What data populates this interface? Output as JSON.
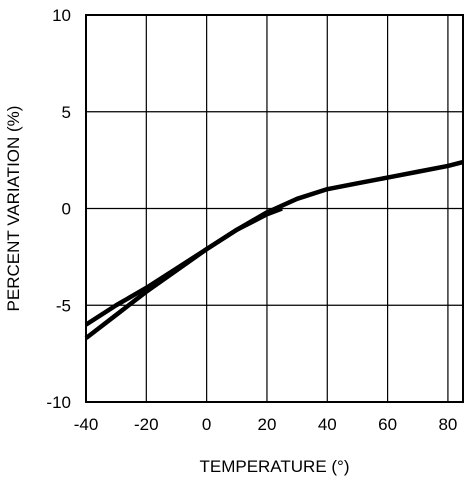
{
  "chart_data": {
    "type": "line",
    "xlabel": "TEMPERATURE (°)",
    "ylabel": "PERCENT VARIATION (%)",
    "xlim": [
      -40,
      85
    ],
    "ylim": [
      -10,
      10
    ],
    "x_ticks": [
      -40,
      -20,
      0,
      20,
      40,
      60,
      80
    ],
    "y_ticks": [
      10,
      5,
      0,
      -5,
      -10
    ],
    "grid": true,
    "series": [
      {
        "x": [
          -40,
          -30,
          -20,
          -10,
          0,
          10,
          20,
          30,
          40,
          50,
          60,
          70,
          80,
          85
        ],
        "y": [
          -6.0,
          -5.0,
          -4.1,
          -3.1,
          -2.1,
          -1.1,
          -0.2,
          0.5,
          1.0,
          1.3,
          1.6,
          1.9,
          2.2,
          2.4
        ]
      },
      {
        "x": [
          -40,
          -30,
          -20,
          -10,
          0,
          10,
          20,
          25
        ],
        "y": [
          -6.7,
          -5.5,
          -4.3,
          -3.2,
          -2.1,
          -1.1,
          -0.3,
          0.0
        ]
      }
    ]
  }
}
